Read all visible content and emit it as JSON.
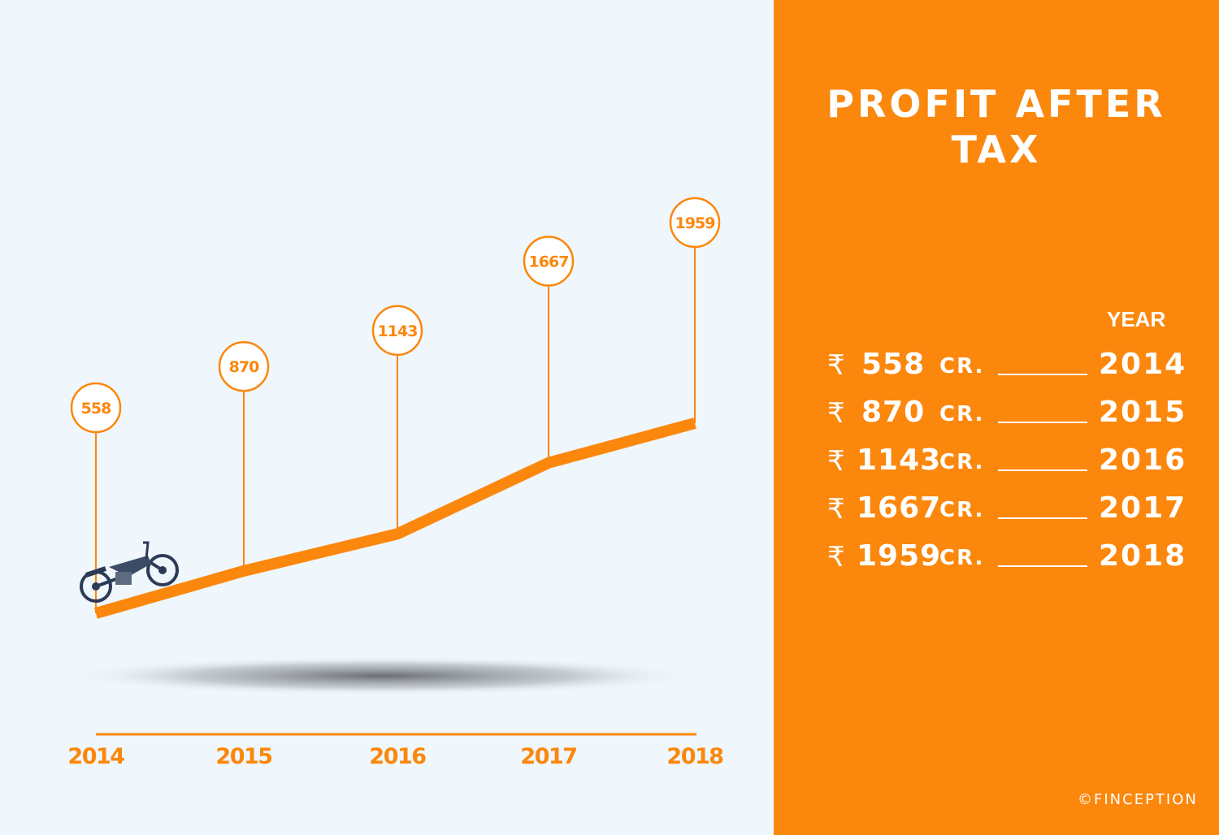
{
  "chart_data": {
    "type": "line",
    "categories": [
      "2014",
      "2015",
      "2016",
      "2017",
      "2018"
    ],
    "values": [
      558,
      870,
      1143,
      1667,
      1959
    ],
    "title": "PROFIT AFTER TAX",
    "data_labels": [
      "558",
      "870",
      "1143",
      "1667",
      "1959"
    ],
    "line_color": "#fb870c",
    "grid": false
  },
  "panel": {
    "title": "PROFIT AFTER TAX",
    "year_header": "YEAR",
    "currency_symbol": "₹",
    "unit": "CR.",
    "rows": [
      {
        "amount": "558",
        "year": "2014"
      },
      {
        "amount": "870",
        "year": "2015"
      },
      {
        "amount": "1143",
        "year": "2016"
      },
      {
        "amount": "1667",
        "year": "2017"
      },
      {
        "amount": "1959",
        "year": "2018"
      }
    ],
    "credit": "©FINCEPTION"
  },
  "colors": {
    "accent": "#fb870c",
    "background": "#eff6fc",
    "text_on_accent": "#ffffff"
  },
  "icons": {
    "motorcycle": "motorcycle-icon"
  }
}
